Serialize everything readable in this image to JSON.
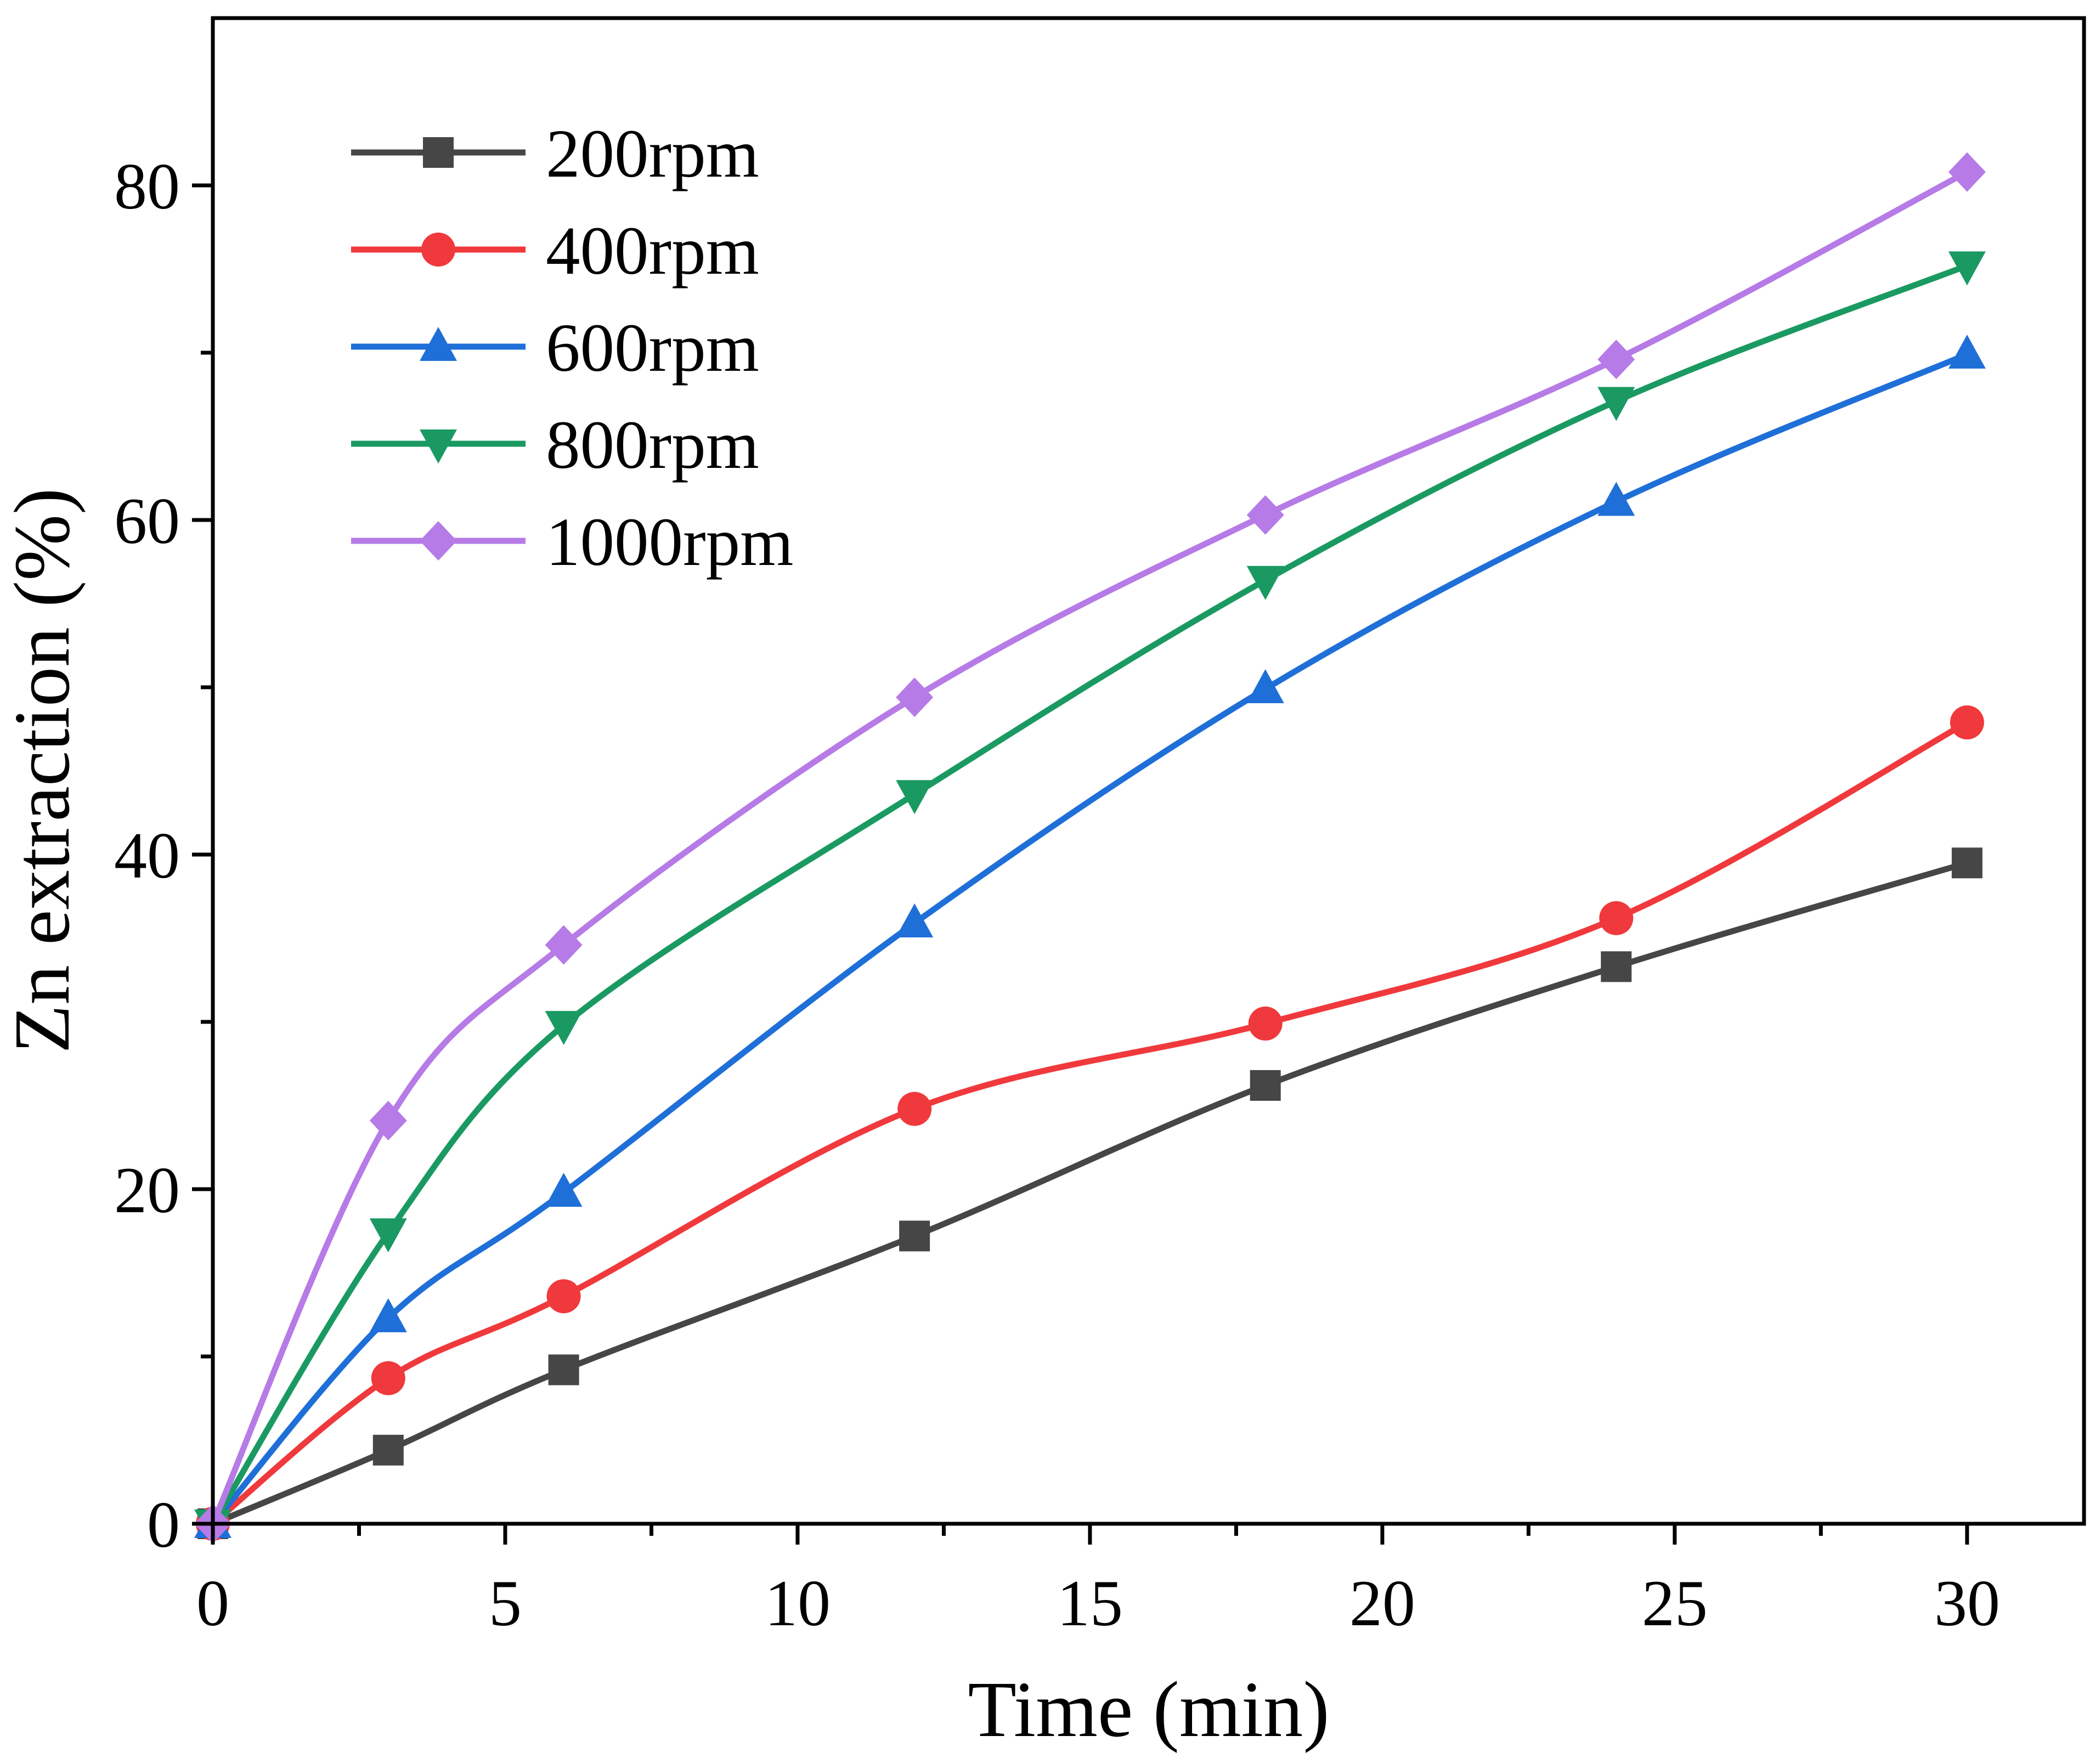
{
  "chart_data": {
    "type": "line",
    "title": "",
    "xlabel": "Time (min)",
    "ylabel": "Zn extraction (%)",
    "xlim": [
      0,
      32
    ],
    "ylim": [
      0,
      90
    ],
    "x_ticks": [
      0,
      5,
      10,
      15,
      20,
      25,
      30
    ],
    "x_tick_labels": [
      "0",
      "5",
      "10",
      "15",
      "20",
      "25",
      "30"
    ],
    "y_ticks": [
      0,
      20,
      40,
      60,
      80
    ],
    "y_tick_labels": [
      "0",
      "20",
      "40",
      "60",
      "80"
    ],
    "grid": false,
    "legend_position": "top-left",
    "x": [
      0,
      3,
      6,
      12,
      18,
      24,
      30
    ],
    "series": [
      {
        "name": "200rpm",
        "color": "#464646",
        "marker": "square",
        "values": [
          0,
          4.4,
          9.2,
          17.2,
          26.2,
          33.3,
          39.5
        ]
      },
      {
        "name": "400rpm",
        "color": "#f0393c",
        "marker": "circle",
        "values": [
          0,
          8.7,
          13.6,
          24.8,
          29.9,
          36.2,
          47.9
        ]
      },
      {
        "name": "600rpm",
        "color": "#1f6fd8",
        "marker": "triangle-up",
        "values": [
          0,
          12.3,
          19.8,
          35.9,
          49.9,
          61.1,
          69.9
        ]
      },
      {
        "name": "800rpm",
        "color": "#1a9a62",
        "marker": "triangle-down",
        "values": [
          0,
          17.4,
          29.8,
          43.6,
          56.4,
          67.1,
          75.2
        ]
      },
      {
        "name": "1000rpm",
        "color": "#b67be6",
        "marker": "diamond",
        "values": [
          0,
          24.1,
          34.6,
          49.4,
          60.3,
          69.6,
          80.8
        ]
      }
    ]
  }
}
